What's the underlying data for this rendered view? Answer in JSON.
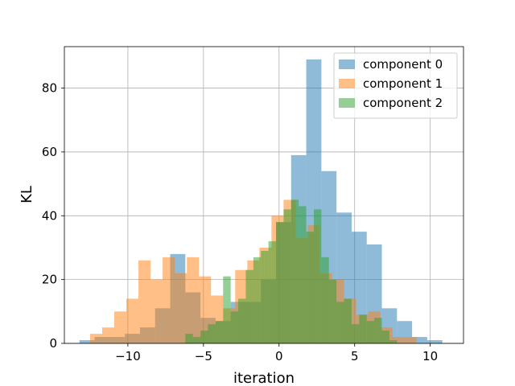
{
  "chart_data": {
    "type": "bar",
    "subtype": "histogram-overlay",
    "title": "",
    "xlabel": "iteration",
    "ylabel": "KL",
    "xlim": [
      -14.2,
      12.2
    ],
    "ylim": [
      0,
      93
    ],
    "xticks": [
      -10,
      -5,
      0,
      5,
      10
    ],
    "xtick_labels": [
      "−10",
      "−5",
      "0",
      "5",
      "10"
    ],
    "yticks": [
      0,
      20,
      40,
      60,
      80
    ],
    "ytick_labels": [
      "0",
      "20",
      "40",
      "60",
      "80"
    ],
    "grid": true,
    "legend_position": "top-right",
    "series": [
      {
        "name": "component 0",
        "color": "#1f77b4",
        "opacity": 0.5,
        "bin_edges": [
          -13.2,
          -12.2,
          -11.2,
          -10.2,
          -9.2,
          -8.2,
          -7.2,
          -6.2,
          -5.2,
          -4.2,
          -3.2,
          -2.2,
          -1.2,
          -0.2,
          0.8,
          1.8,
          2.8,
          3.8,
          4.8,
          5.8,
          6.8,
          7.8,
          8.8,
          9.8,
          10.8
        ],
        "counts": [
          1,
          2,
          2,
          3,
          5,
          11,
          28,
          16,
          8,
          7,
          13,
          13,
          20,
          38,
          59,
          89,
          54,
          41,
          35,
          31,
          11,
          7,
          2,
          1
        ]
      },
      {
        "name": "component 1",
        "color": "#ff7f0e",
        "opacity": 0.5,
        "bin_edges": [
          -12.5,
          -11.7,
          -10.9,
          -10.1,
          -9.3,
          -8.5,
          -7.7,
          -6.9,
          -6.1,
          -5.3,
          -4.5,
          -3.7,
          -2.9,
          -2.1,
          -1.3,
          -0.5,
          0.3,
          1.1,
          1.9,
          2.7,
          3.5,
          4.3,
          5.1,
          5.9,
          6.7,
          7.5,
          8.3,
          9.1
        ],
        "counts": [
          3,
          5,
          10,
          14,
          26,
          20,
          27,
          22,
          27,
          21,
          15,
          11,
          23,
          26,
          30,
          40,
          45,
          33,
          37,
          22,
          20,
          14,
          9,
          10,
          5,
          2,
          2
        ]
      },
      {
        "name": "component 2",
        "color": "#2ca02c",
        "opacity": 0.5,
        "bin_edges": [
          -6.2,
          -5.7,
          -5.2,
          -4.7,
          -4.2,
          -3.7,
          -3.2,
          -2.7,
          -2.2,
          -1.7,
          -1.2,
          -0.7,
          -0.2,
          0.3,
          0.8,
          1.3,
          1.8,
          2.3,
          2.8,
          3.3,
          3.8,
          4.3,
          4.8,
          5.3,
          5.8,
          6.3,
          6.8,
          7.3,
          7.8
        ],
        "counts": [
          3,
          2,
          4,
          6,
          7,
          21,
          10,
          14,
          23,
          27,
          29,
          32,
          38,
          42,
          45,
          43,
          35,
          42,
          27,
          20,
          13,
          14,
          6,
          9,
          7,
          8,
          4,
          1
        ]
      }
    ]
  }
}
